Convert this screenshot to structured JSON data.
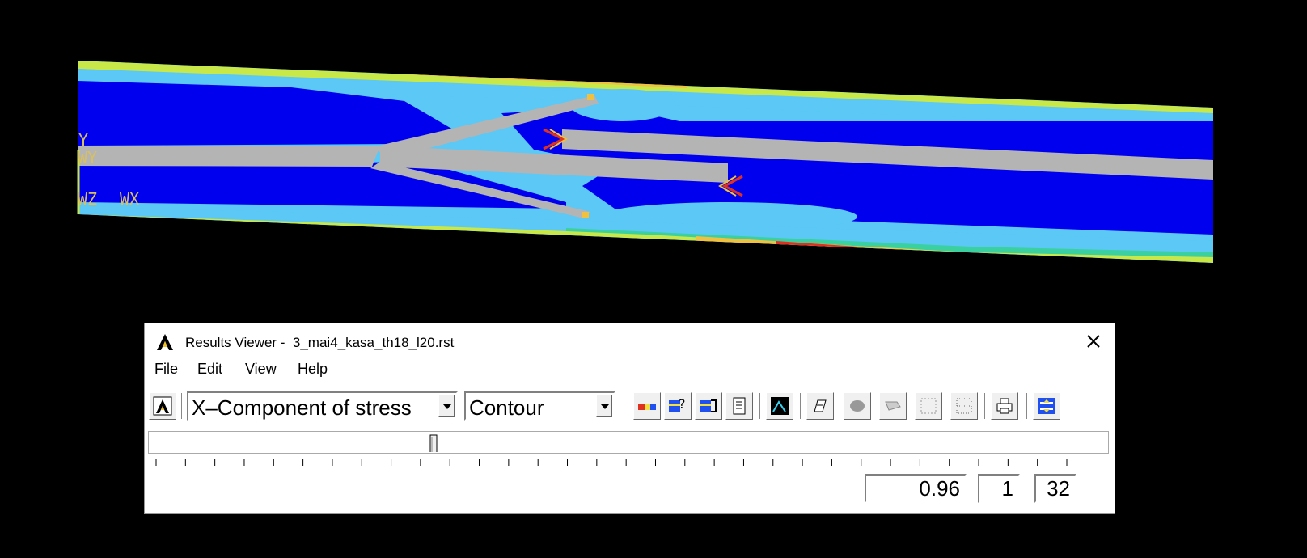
{
  "viewport": {
    "triad_labels": [
      "Y",
      "WY",
      "WZ",
      "WX"
    ],
    "contour_colors": [
      "#0000ee",
      "#5bc8f5",
      "#3ad0a0",
      "#c8e84a",
      "#f0c040",
      "#e03020",
      "#b4b4b4"
    ]
  },
  "results_viewer": {
    "title": "Results Viewer -  3_mai4_kasa_th18_l20.rst",
    "close_icon": "close-icon",
    "menu": [
      "File",
      "Edit",
      "View",
      "Help"
    ],
    "result_item": "X–Component of stress",
    "plot_type": "Contour",
    "toolbar_icons": [
      "plot-results-icon",
      "contour-legend-icon",
      "query-icon",
      "animate-icon",
      "list-icon",
      "view-graph-icon",
      "pan-zoom-icon",
      "mesh-icon",
      "edges-icon",
      "grid-icon",
      "grid-fine-icon",
      "print-icon",
      "settings-icon"
    ],
    "time_value": "0.96",
    "set_value": "1",
    "total_sets": "32",
    "slider_position": 0.3
  }
}
